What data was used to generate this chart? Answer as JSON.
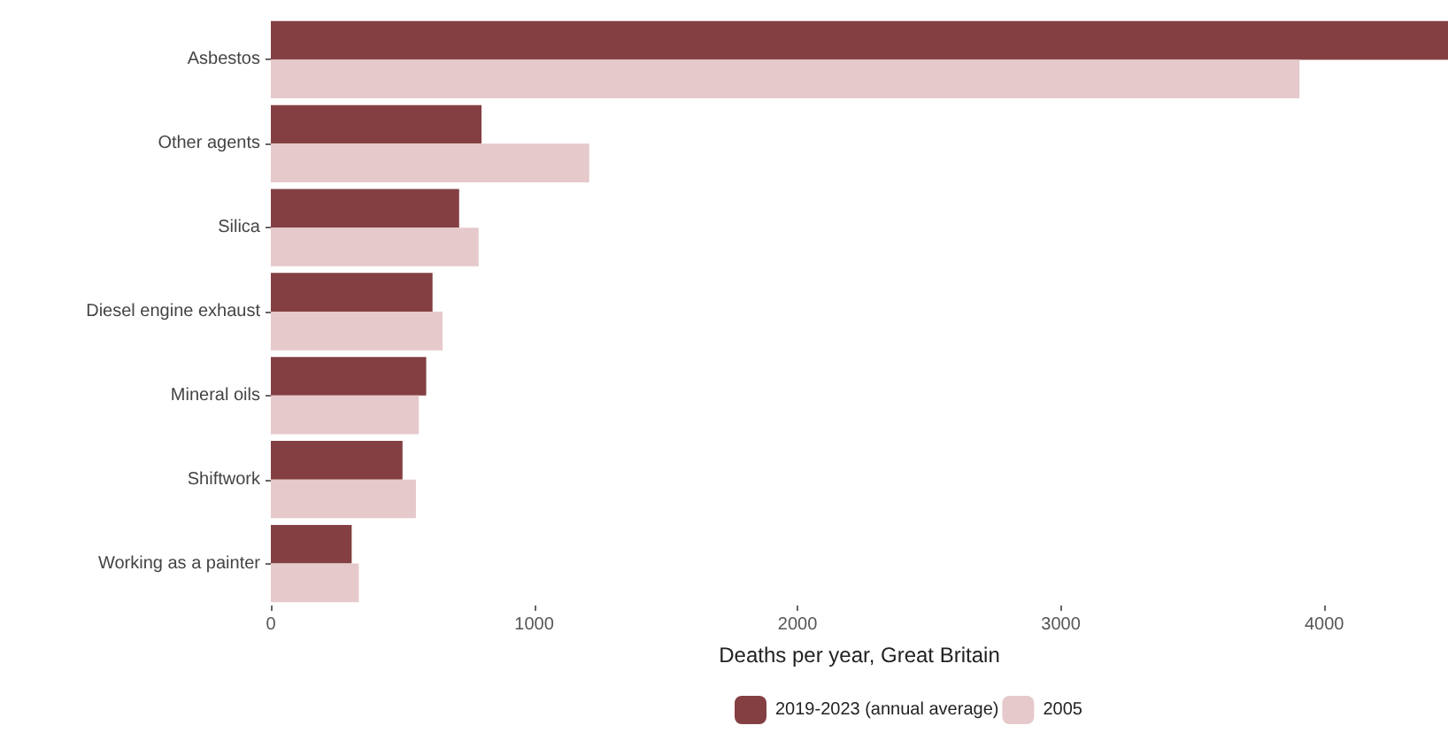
{
  "chart_data": {
    "type": "bar",
    "orientation": "horizontal",
    "xlabel": "Deaths per year, Great Britain",
    "categories": [
      "Asbestos",
      "Other agents",
      "Silica",
      "Diesel engine exhaust",
      "Mineral oils",
      "Shiftwork",
      "Working as a painter"
    ],
    "series": [
      {
        "name": "2019-2023 (annual average)",
        "color": "#843f42",
        "values": [
          4470,
          800,
          715,
          614,
          590,
          500,
          307
        ]
      },
      {
        "name": "2005",
        "color": "#e6c9cb",
        "values": [
          3906,
          1209,
          789,
          652,
          562,
          551,
          334
        ]
      }
    ],
    "xlim": [
      0,
      4470
    ],
    "xticks": [
      0,
      1000,
      2000,
      3000,
      4000
    ],
    "grid": false,
    "legend": "bottom"
  }
}
